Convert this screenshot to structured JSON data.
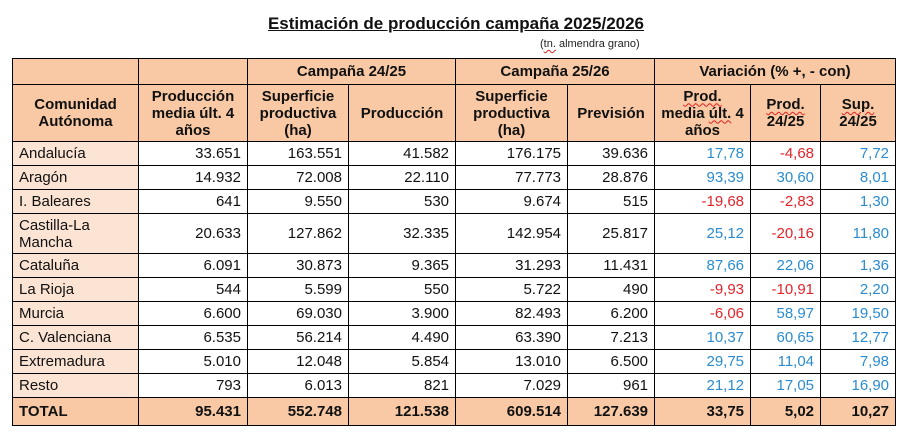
{
  "title": "Estimación de producción campaña 2025/2026",
  "subtitle_prefix": "(",
  "subtitle_unit": "tn.",
  "subtitle_rest": " almendra grano)",
  "groups": {
    "campana_2425": "Campaña 24/25",
    "campana_2526": "Campaña 25/26",
    "variacion": "Variación (% +, - con)"
  },
  "headers": {
    "comunidad": "Comunidad Autónoma",
    "prod_media": "Producción media últ. 4 años",
    "sup_2425": "Superficie productiva (ha)",
    "prod_2425": "Producción",
    "sup_2526": "Superficie productiva (ha)",
    "prevision": "Previsión",
    "var_prod_media_1": "Prod.",
    "var_prod_media_2": " media ",
    "var_prod_media_3": "últ.",
    "var_prod_media_4": " 4 años",
    "var_prod_2425_1": "Prod.",
    "var_prod_2425_2": " 24/25",
    "var_sup_2425_1": "Sup.",
    "var_sup_2425_2": " 24/25"
  },
  "colors": {
    "header_bg": "#f8c9a4",
    "name_bg": "#fce4d4",
    "positive": "#2b8ccf",
    "negative": "#e3242b"
  },
  "rows": [
    {
      "name": "Andalucía",
      "prod_media": "33.651",
      "sup_2425": "163.551",
      "prod_2425": "41.582",
      "sup_2526": "176.175",
      "prevision": "39.636",
      "v1": "17,78",
      "v2": "-4,68",
      "v3": "7,72"
    },
    {
      "name": "Aragón",
      "prod_media": "14.932",
      "sup_2425": "72.008",
      "prod_2425": "22.110",
      "sup_2526": "77.773",
      "prevision": "28.876",
      "v1": "93,39",
      "v2": "30,60",
      "v3": "8,01"
    },
    {
      "name": "I. Baleares",
      "prod_media": "641",
      "sup_2425": "9.550",
      "prod_2425": "530",
      "sup_2526": "9.674",
      "prevision": "515",
      "v1": "-19,68",
      "v2": "-2,83",
      "v3": "1,30"
    },
    {
      "name": "Castilla-La Mancha",
      "prod_media": "20.633",
      "sup_2425": "127.862",
      "prod_2425": "32.335",
      "sup_2526": "142.954",
      "prevision": "25.817",
      "v1": "25,12",
      "v2": "-20,16",
      "v3": "11,80"
    },
    {
      "name": "Cataluña",
      "prod_media": "6.091",
      "sup_2425": "30.873",
      "prod_2425": "9.365",
      "sup_2526": "31.293",
      "prevision": "11.431",
      "v1": "87,66",
      "v2": "22,06",
      "v3": "1,36"
    },
    {
      "name": "La Rioja",
      "prod_media": "544",
      "sup_2425": "5.599",
      "prod_2425": "550",
      "sup_2526": "5.722",
      "prevision": "490",
      "v1": "-9,93",
      "v2": "-10,91",
      "v3": "2,20"
    },
    {
      "name": "Murcia",
      "prod_media": "6.600",
      "sup_2425": "69.030",
      "prod_2425": "3.900",
      "sup_2526": "82.493",
      "prevision": "6.200",
      "v1": "-6,06",
      "v2": "58,97",
      "v3": "19,50"
    },
    {
      "name": "C. Valenciana",
      "prod_media": "6.535",
      "sup_2425": "56.214",
      "prod_2425": "4.490",
      "sup_2526": "63.390",
      "prevision": "7.213",
      "v1": "10,37",
      "v2": "60,65",
      "v3": "12,77"
    },
    {
      "name": "Extremadura",
      "prod_media": "5.010",
      "sup_2425": "12.048",
      "prod_2425": "5.854",
      "sup_2526": "13.010",
      "prevision": "6.500",
      "v1": "29,75",
      "v2": "11,04",
      "v3": "7,98"
    },
    {
      "name": "Resto",
      "prod_media": "793",
      "sup_2425": "6.013",
      "prod_2425": "821",
      "sup_2526": "7.029",
      "prevision": "961",
      "v1": "21,12",
      "v2": "17,05",
      "v3": "16,90"
    }
  ],
  "total": {
    "name": "TOTAL",
    "prod_media": "95.431",
    "sup_2425": "552.748",
    "prod_2425": "121.538",
    "sup_2526": "609.514",
    "prevision": "127.639",
    "v1": "33,75",
    "v2": "5,02",
    "v3": "10,27"
  }
}
